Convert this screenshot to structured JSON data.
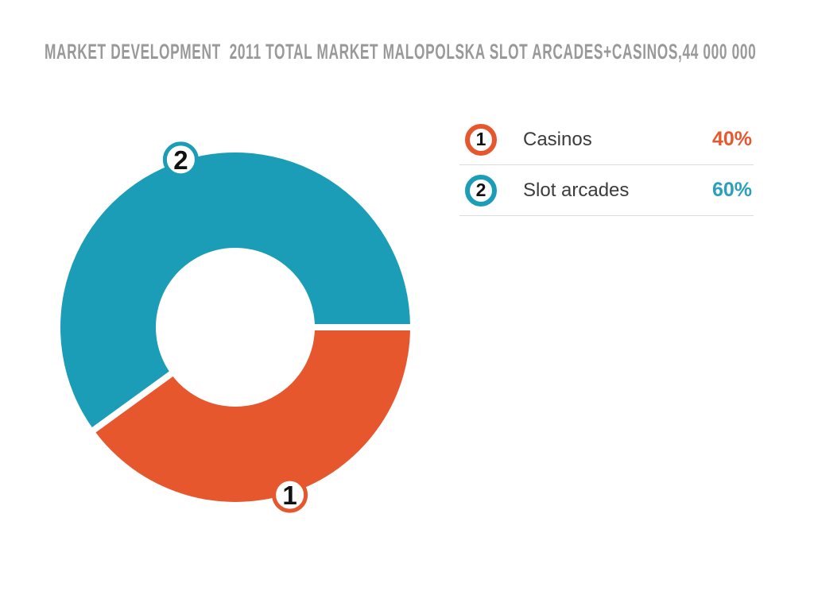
{
  "colors": {
    "background": "#FFFFFF",
    "title": "#999999",
    "legend_label": "#3C3C3C",
    "divider": "#DCDCDC",
    "marker_digit": "#111111",
    "separator": "#FFFFFF"
  },
  "chart_data": {
    "type": "pie",
    "donut": true,
    "title": "MARKET DEVELOPMENT  2011 TOTAL MARKET MALOPOLSKA SLOT ARCADES+CASINOS,44 000 000",
    "total_market_value": "44 000 000",
    "start_angle_deg": 0,
    "direction": "clockwise",
    "legend_position": "right",
    "grid": false,
    "segments": [
      {
        "index": "1",
        "label": "Casinos",
        "value_pct": 40,
        "percent_label": "40%",
        "color": "#E7572E",
        "percent_color": "#E7582F"
      },
      {
        "index": "2",
        "label": "Slot arcades",
        "value_pct": 60,
        "percent_label": "60%",
        "color": "#1B9DB7",
        "percent_color": "#2BA0BC"
      }
    ]
  }
}
